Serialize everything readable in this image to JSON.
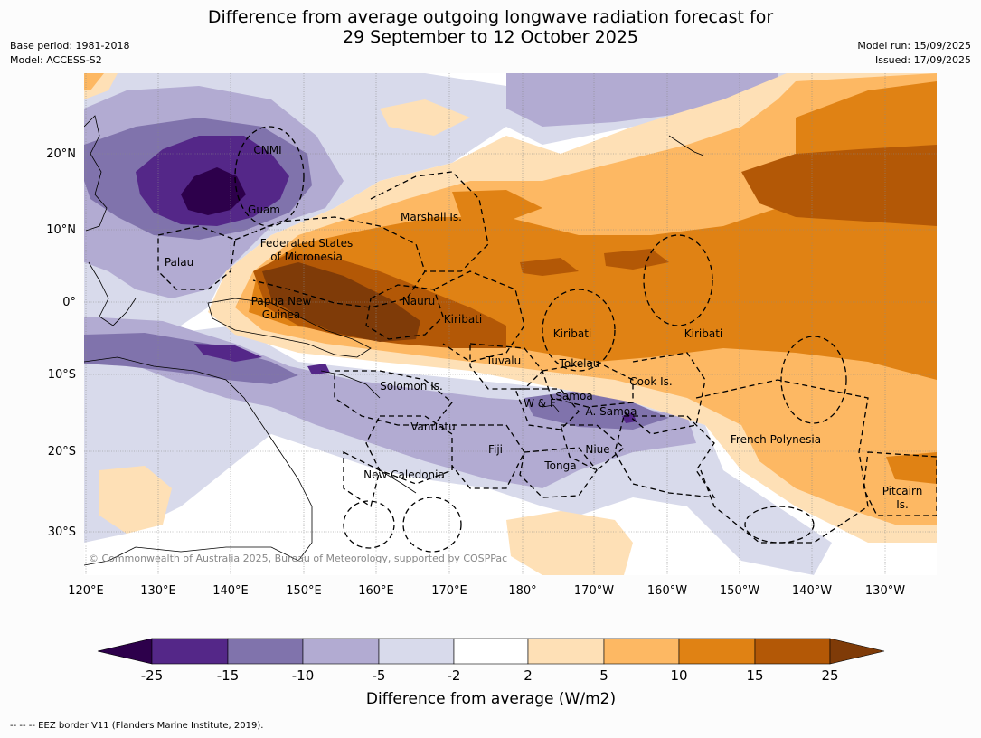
{
  "header": {
    "title_line1": "Difference from average outgoing longwave radiation forecast for",
    "title_line2": "29 September to 12 October 2025",
    "base_period": "Base period: 1981-2018",
    "model": "Model: ACCESS-S2",
    "model_run": "Model run: 15/09/2025",
    "issued": "Issued: 17/09/2025"
  },
  "map": {
    "lat_labels": [
      "20°N",
      "10°N",
      "0°",
      "10°S",
      "20°S",
      "30°S"
    ],
    "lon_labels": [
      "120°E",
      "130°E",
      "140°E",
      "150°E",
      "160°E",
      "170°E",
      "180°",
      "170°W",
      "160°W",
      "150°W",
      "140°W",
      "130°W"
    ],
    "region_labels": [
      "CNMI",
      "Guam",
      "Marshall Is.",
      "Federated States",
      "of Micronesia",
      "Palau",
      "Papua New",
      "Guinea",
      "Nauru",
      "Kiribati",
      "Kiribati",
      "Kiribati",
      "Tuvalu",
      "Tokelau",
      "Cook Is.",
      "Solomon Is.",
      "Samoa",
      "W & F",
      "A. Samoa",
      "Vanuatu",
      "Fiji",
      "Niue",
      "Tonga",
      "French Polynesia",
      "New Caledonia",
      "Pitcairn",
      "Is."
    ],
    "copyright": "© Commonwealth of Australia 2025, Bureau of Meteorology, supported by COSPPac",
    "colors": {
      "neg25": "#2d004b",
      "neg15": "#542788",
      "neg10": "#8073ac",
      "neg5": "#b2abd2",
      "neg2": "#d8daeb",
      "zero": "#ffffff",
      "pos2": "#fee0b6",
      "pos5": "#fdb863",
      "pos10": "#e08214",
      "pos15": "#b35806",
      "pos25": "#7f3b08"
    }
  },
  "colorbar": {
    "ticks": [
      "-25",
      "-15",
      "-10",
      "-5",
      "-2",
      "2",
      "5",
      "10",
      "15",
      "25"
    ],
    "label": "Difference from average (W/m2)"
  },
  "footer": {
    "legend": "--  --  -- EEZ border V11 (Flanders Marine Institute, 2019)."
  }
}
